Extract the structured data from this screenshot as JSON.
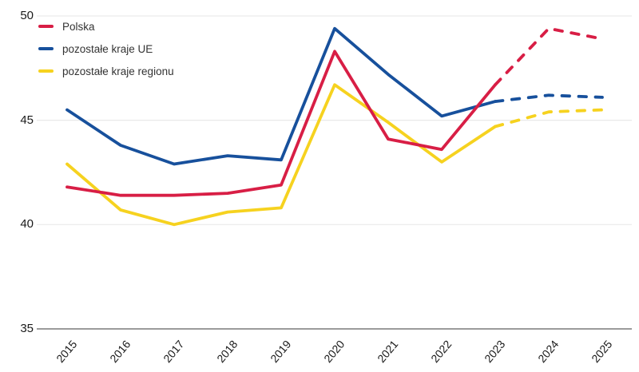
{
  "chart_data": {
    "type": "line",
    "x": [
      "2015",
      "2016",
      "2017",
      "2018",
      "2019",
      "2020",
      "2021",
      "2022",
      "2023",
      "2024",
      "2025"
    ],
    "series": [
      {
        "name": "Polska",
        "color": "#d81e45",
        "values": [
          41.8,
          41.4,
          41.4,
          41.5,
          41.9,
          48.3,
          44.1,
          43.6,
          46.7,
          49.4,
          48.9
        ],
        "forecast_from": "2023"
      },
      {
        "name": "pozostałe kraje UE",
        "color": "#17509c",
        "values": [
          45.5,
          43.8,
          42.9,
          43.3,
          43.1,
          49.4,
          47.2,
          45.2,
          45.9,
          46.2,
          46.1
        ],
        "forecast_from": "2023"
      },
      {
        "name": "pozostałe kraje regionu",
        "color": "#f6d21f",
        "values": [
          42.9,
          40.7,
          40.0,
          40.6,
          40.8,
          46.7,
          44.9,
          43.0,
          44.7,
          45.4,
          45.5
        ],
        "forecast_from": "2023"
      }
    ],
    "title": "",
    "xlabel": "",
    "ylabel": "",
    "ylim": [
      35,
      50
    ],
    "yticks": [
      35,
      40,
      45,
      50
    ],
    "grid": "horizontal",
    "legend_position": "top-left",
    "style_note": "dashed segments after forecast_from year"
  }
}
